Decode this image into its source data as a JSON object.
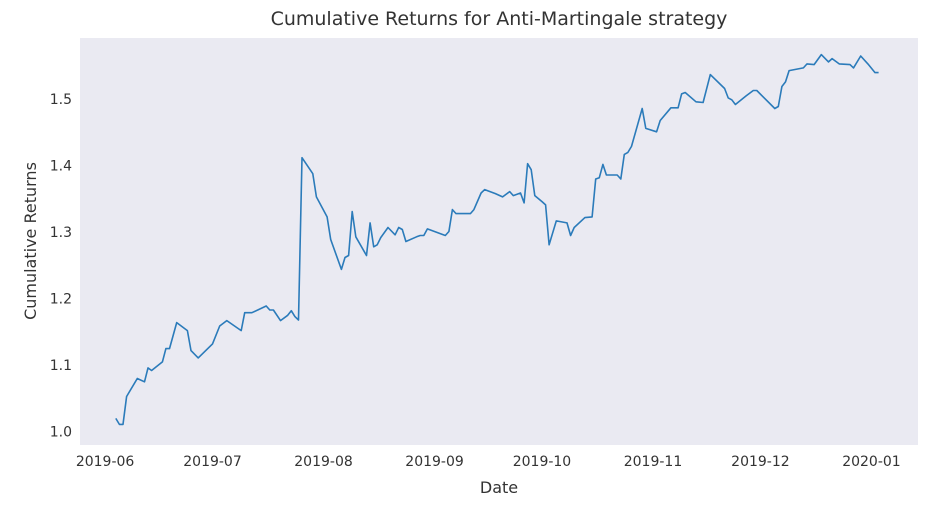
{
  "chart_data": {
    "type": "line",
    "title": "Cumulative Returns for Anti-Martingale strategy",
    "xlabel": "Date",
    "ylabel": "Cumulative Returns",
    "xlim": [
      "2019-05-25",
      "2020-01-14"
    ],
    "ylim": [
      0.98,
      1.592
    ],
    "grid": false,
    "background": "#eaeaf2",
    "line_color": "#2b7bba",
    "x_ticks": [
      {
        "date": "2019-06-01",
        "label": "2019-06"
      },
      {
        "date": "2019-07-01",
        "label": "2019-07"
      },
      {
        "date": "2019-08-01",
        "label": "2019-08"
      },
      {
        "date": "2019-09-01",
        "label": "2019-09"
      },
      {
        "date": "2019-10-01",
        "label": "2019-10"
      },
      {
        "date": "2019-11-01",
        "label": "2019-11"
      },
      {
        "date": "2019-12-01",
        "label": "2019-12"
      },
      {
        "date": "2020-01-01",
        "label": "2020-01"
      }
    ],
    "y_ticks": [
      {
        "value": 1.0,
        "label": "1.0"
      },
      {
        "value": 1.1,
        "label": "1.1"
      },
      {
        "value": 1.2,
        "label": "1.2"
      },
      {
        "value": 1.3,
        "label": "1.3"
      },
      {
        "value": 1.4,
        "label": "1.4"
      },
      {
        "value": 1.5,
        "label": "1.5"
      }
    ],
    "series": [
      {
        "x": [
          "2019-06-04",
          "2019-06-05",
          "2019-06-06",
          "2019-06-07",
          "2019-06-10",
          "2019-06-12",
          "2019-06-13",
          "2019-06-14",
          "2019-06-17",
          "2019-06-18",
          "2019-06-19",
          "2019-06-21",
          "2019-06-24",
          "2019-06-25",
          "2019-06-27",
          "2019-07-01",
          "2019-07-03",
          "2019-07-05",
          "2019-07-09",
          "2019-07-10",
          "2019-07-12",
          "2019-07-16",
          "2019-07-17",
          "2019-07-18",
          "2019-07-20",
          "2019-07-22",
          "2019-07-23",
          "2019-07-24",
          "2019-07-25",
          "2019-07-26",
          "2019-07-29",
          "2019-07-30",
          "2019-08-02",
          "2019-08-03",
          "2019-08-06",
          "2019-08-07",
          "2019-08-08",
          "2019-08-09",
          "2019-08-10",
          "2019-08-13",
          "2019-08-14",
          "2019-08-15",
          "2019-08-16",
          "2019-08-17",
          "2019-08-19",
          "2019-08-21",
          "2019-08-22",
          "2019-08-23",
          "2019-08-24",
          "2019-08-27",
          "2019-08-28",
          "2019-08-29",
          "2019-08-30",
          "2019-09-04",
          "2019-09-05",
          "2019-09-06",
          "2019-09-07",
          "2019-09-11",
          "2019-09-12",
          "2019-09-14",
          "2019-09-15",
          "2019-09-18",
          "2019-09-20",
          "2019-09-22",
          "2019-09-23",
          "2019-09-25",
          "2019-09-26",
          "2019-09-27",
          "2019-09-28",
          "2019-09-29",
          "2019-10-01",
          "2019-10-02",
          "2019-10-03",
          "2019-10-05",
          "2019-10-08",
          "2019-10-09",
          "2019-10-10",
          "2019-10-13",
          "2019-10-15",
          "2019-10-16",
          "2019-10-17",
          "2019-10-18",
          "2019-10-19",
          "2019-10-22",
          "2019-10-23",
          "2019-10-24",
          "2019-10-25",
          "2019-10-26",
          "2019-10-29",
          "2019-10-30",
          "2019-11-02",
          "2019-11-03",
          "2019-11-06",
          "2019-11-08",
          "2019-11-09",
          "2019-11-10",
          "2019-11-13",
          "2019-11-15",
          "2019-11-17",
          "2019-11-21",
          "2019-11-22",
          "2019-11-23",
          "2019-11-24",
          "2019-11-27",
          "2019-11-29",
          "2019-11-30",
          "2019-12-05",
          "2019-12-06",
          "2019-12-07",
          "2019-12-08",
          "2019-12-09",
          "2019-12-13",
          "2019-12-14",
          "2019-12-16",
          "2019-12-18",
          "2019-12-20",
          "2019-12-21",
          "2019-12-23",
          "2019-12-26",
          "2019-12-27",
          "2019-12-29",
          "2019-12-31",
          "2020-01-02",
          "2020-01-03"
        ],
        "y": [
          1.02,
          1.011,
          1.011,
          1.053,
          1.08,
          1.075,
          1.096,
          1.092,
          1.105,
          1.125,
          1.125,
          1.164,
          1.152,
          1.122,
          1.111,
          1.132,
          1.159,
          1.167,
          1.152,
          1.179,
          1.179,
          1.189,
          1.183,
          1.183,
          1.167,
          1.175,
          1.182,
          1.173,
          1.168,
          1.412,
          1.388,
          1.353,
          1.323,
          1.289,
          1.244,
          1.262,
          1.265,
          1.331,
          1.293,
          1.265,
          1.314,
          1.278,
          1.281,
          1.292,
          1.307,
          1.296,
          1.307,
          1.304,
          1.286,
          1.293,
          1.295,
          1.295,
          1.305,
          1.295,
          1.301,
          1.334,
          1.328,
          1.328,
          1.334,
          1.359,
          1.364,
          1.358,
          1.353,
          1.361,
          1.355,
          1.359,
          1.344,
          1.403,
          1.394,
          1.355,
          1.346,
          1.341,
          1.281,
          1.317,
          1.314,
          1.295,
          1.307,
          1.322,
          1.323,
          1.38,
          1.382,
          1.402,
          1.386,
          1.386,
          1.38,
          1.417,
          1.42,
          1.429,
          1.486,
          1.456,
          1.451,
          1.468,
          1.487,
          1.487,
          1.508,
          1.51,
          1.496,
          1.495,
          1.537,
          1.516,
          1.502,
          1.499,
          1.492,
          1.505,
          1.513,
          1.513,
          1.486,
          1.489,
          1.519,
          1.526,
          1.543,
          1.547,
          1.553,
          1.552,
          1.567,
          1.556,
          1.561,
          1.553,
          1.552,
          1.547,
          1.565,
          1.553,
          1.54,
          1.54
        ]
      }
    ]
  }
}
